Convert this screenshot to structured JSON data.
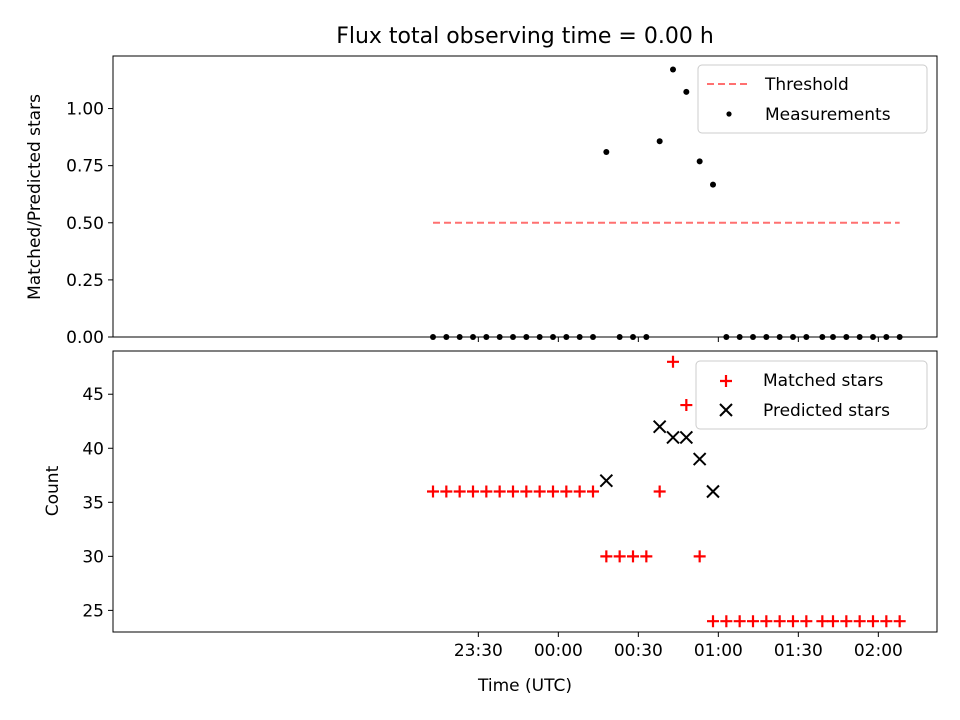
{
  "chart_data": [
    {
      "type": "scatter",
      "title": "Flux total observing time = 0.00 h",
      "xlabel": "",
      "ylabel": "Matched/Predicted stars",
      "ylim": [
        0,
        1.23
      ],
      "yticks": [
        0.0,
        0.25,
        0.5,
        0.75,
        1.0
      ],
      "ytick_labels": [
        "0.00",
        "0.25",
        "0.50",
        "0.75",
        "1.00"
      ],
      "xtick_labels": [],
      "legend_position": "top-right",
      "threshold": {
        "name": "Threshold",
        "value": 0.5,
        "x_start": "23:13",
        "x_end": "02:08",
        "color": "#ff7070"
      },
      "series": [
        {
          "name": "Measurements",
          "color": "#000000",
          "x": [
            "23:13",
            "23:18",
            "23:23",
            "23:28",
            "23:33",
            "23:38",
            "23:43",
            "23:48",
            "23:53",
            "23:58",
            "00:03",
            "00:08",
            "00:13",
            "00:18",
            "00:23",
            "00:28",
            "00:33",
            "00:38",
            "00:43",
            "00:48",
            "00:53",
            "00:58",
            "01:03",
            "01:08",
            "01:13",
            "01:18",
            "01:23",
            "01:28",
            "01:33",
            "01:39",
            "01:43",
            "01:48",
            "01:53",
            "01:58",
            "02:03",
            "02:08"
          ],
          "values": [
            0,
            0,
            0,
            0,
            0,
            0,
            0,
            0,
            0,
            0,
            0,
            0,
            0,
            0.81,
            0,
            0,
            0,
            0.857,
            1.171,
            1.073,
            0.769,
            0.667,
            0,
            0,
            0,
            0,
            0,
            0,
            0,
            0,
            0,
            0,
            0,
            0,
            0,
            0
          ]
        }
      ]
    },
    {
      "type": "scatter",
      "title": "",
      "xlabel": "Time (UTC)",
      "ylabel": "Count",
      "ylim": [
        23,
        49
      ],
      "yticks": [
        25,
        30,
        35,
        40,
        45
      ],
      "ytick_labels": [
        "25",
        "30",
        "35",
        "40",
        "45"
      ],
      "xtick_labels": [
        "23:30",
        "00:00",
        "00:30",
        "01:00",
        "01:30",
        "02:00"
      ],
      "legend_position": "top-right",
      "series": [
        {
          "name": "Matched stars",
          "marker": "+",
          "color": "#ff0000",
          "x": [
            "23:13",
            "23:18",
            "23:23",
            "23:28",
            "23:33",
            "23:38",
            "23:43",
            "23:48",
            "23:53",
            "23:58",
            "00:03",
            "00:08",
            "00:13",
            "00:18",
            "00:23",
            "00:28",
            "00:33",
            "00:38",
            "00:43",
            "00:48",
            "00:53",
            "00:58",
            "01:03",
            "01:08",
            "01:13",
            "01:18",
            "01:23",
            "01:28",
            "01:33",
            "01:39",
            "01:43",
            "01:48",
            "01:53",
            "01:58",
            "02:03",
            "02:08"
          ],
          "values": [
            36,
            36,
            36,
            36,
            36,
            36,
            36,
            36,
            36,
            36,
            36,
            36,
            36,
            30,
            30,
            30,
            30,
            36,
            48,
            44,
            30,
            24,
            24,
            24,
            24,
            24,
            24,
            24,
            24,
            24,
            24,
            24,
            24,
            24,
            24,
            24
          ]
        },
        {
          "name": "Predicted stars",
          "marker": "x",
          "color": "#000000",
          "x": [
            "00:18",
            "00:38",
            "00:43",
            "00:48",
            "00:53",
            "00:58"
          ],
          "values": [
            37,
            42,
            41,
            41,
            39,
            36
          ]
        }
      ]
    }
  ]
}
